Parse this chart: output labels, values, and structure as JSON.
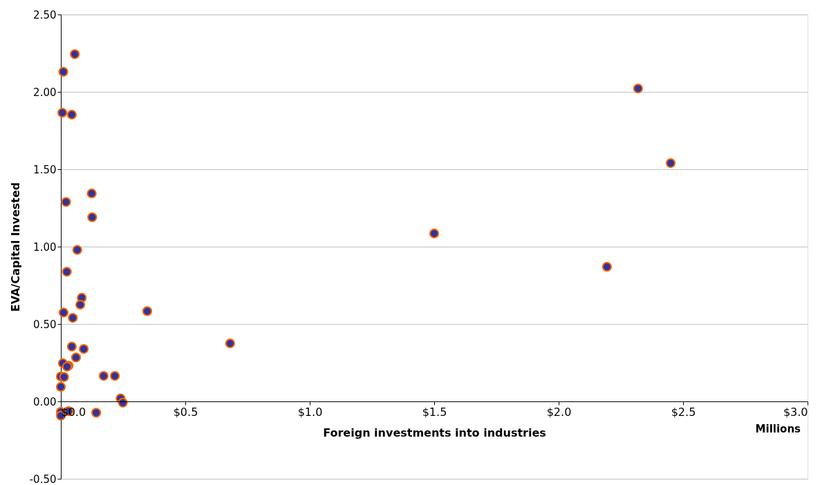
{
  "chart_data": {
    "type": "scatter",
    "xlabel": "Foreign investments into industries",
    "ylabel": "EVA/Capital Invested",
    "annotations": [
      "Millions"
    ],
    "x": [
      0.056,
      0.01,
      0.006,
      0.044,
      0.124,
      0.126,
      0.021,
      0.066,
      0.024,
      0.084,
      0.078,
      0.011,
      0.048,
      0.347,
      0.68,
      0.044,
      0.092,
      0.061,
      0.008,
      0.031,
      0.025,
      0.0,
      0.013,
      0.0,
      0.172,
      0.217,
      0.24,
      0.249,
      0.142,
      0.031,
      0.0,
      0.0,
      1.5,
      2.194,
      2.319,
      2.45
    ],
    "series": [
      {
        "color": "#333399",
        "values": [
          2.244,
          2.13,
          1.865,
          1.853,
          1.344,
          1.19,
          1.289,
          0.979,
          0.838,
          0.67,
          0.625,
          0.574,
          0.54,
          0.583,
          0.375,
          0.354,
          0.339,
          0.284,
          0.247,
          0.231,
          0.225,
          0.161,
          0.158,
          0.094,
          0.165,
          0.165,
          0.019,
          -0.008,
          -0.073,
          -0.063,
          -0.067,
          -0.092,
          1.085,
          0.87,
          2.022,
          1.54
        ]
      }
    ],
    "marker": "circle",
    "xlim": [
      0,
      3.0
    ],
    "xticks": [
      {
        "value": 0,
        "label": "$0.0"
      },
      {
        "value": 0.5,
        "label": "$0.5"
      },
      {
        "value": 1.0,
        "label": "$1.0"
      },
      {
        "value": 1.5,
        "label": "$1.5"
      },
      {
        "value": 2.0,
        "label": "$2.0"
      },
      {
        "value": 2.5,
        "label": "$2.5"
      },
      {
        "value": 3.0,
        "label": "$3.0"
      }
    ],
    "ylim": [
      -0.5,
      2.5
    ],
    "yticks": [
      {
        "value": -0.5,
        "label": "-0.50"
      },
      {
        "value": 0,
        "label": "0.00"
      },
      {
        "value": 0.5,
        "label": "0.50"
      },
      {
        "value": 1.0,
        "label": "1.00"
      },
      {
        "value": 1.5,
        "label": "1.50"
      },
      {
        "value": 2.0,
        "label": "2.00"
      },
      {
        "value": 2.5,
        "label": "2.50"
      }
    ],
    "grid": "y"
  }
}
